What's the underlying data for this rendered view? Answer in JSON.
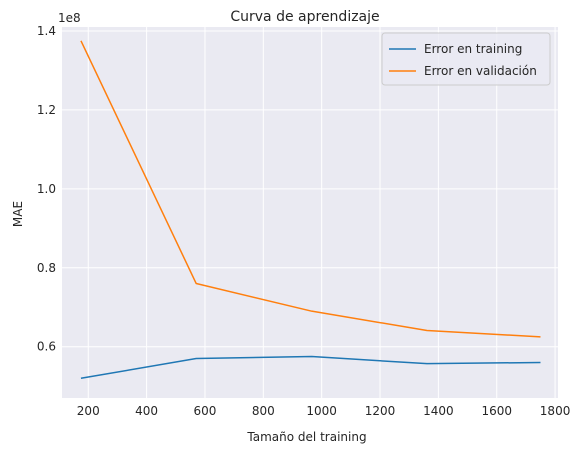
{
  "chart_data": {
    "type": "line",
    "title": "Curva de aprendizaje",
    "xlabel": "Tamaño del training",
    "ylabel": "MAE",
    "y_offset_label": "1e8",
    "xlim": [
      110,
      1810
    ],
    "ylim": [
      47000000,
      141000000
    ],
    "x_ticks": [
      200,
      400,
      600,
      800,
      1000,
      1200,
      1400,
      1600,
      1800
    ],
    "y_ticks": [
      60000000,
      80000000,
      100000000,
      120000000,
      140000000
    ],
    "y_tick_labels": [
      "0.6",
      "0.8",
      "1.0",
      "1.2",
      "1.4"
    ],
    "x": [
      175,
      570,
      966,
      1361,
      1750
    ],
    "series": [
      {
        "name": "Error en training",
        "color": "#1f77b4",
        "values": [
          52000000,
          57000000,
          57500000,
          55700000,
          56000000
        ]
      },
      {
        "name": "Error en validación",
        "color": "#ff7f0e",
        "values": [
          137500000,
          76000000,
          69000000,
          64100000,
          62500000
        ]
      }
    ],
    "grid": true,
    "legend_position": "top-right",
    "background": "#eaeaf2",
    "grid_color": "#ffffff"
  }
}
